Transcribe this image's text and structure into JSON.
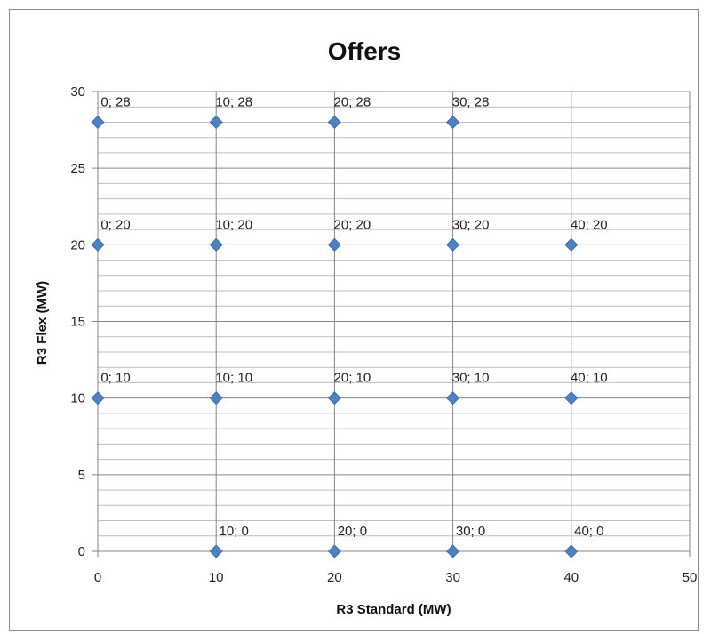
{
  "chart_data": {
    "type": "scatter",
    "title": "Offers",
    "xlabel": "R3 Standard (MW)",
    "ylabel": "R3 Flex (MW)",
    "xlim": [
      0,
      50
    ],
    "ylim": [
      0,
      30
    ],
    "x_ticks": [
      "0",
      "10",
      "20",
      "30",
      "40",
      "50"
    ],
    "y_ticks": [
      "0",
      "5",
      "10",
      "15",
      "20",
      "25",
      "30"
    ],
    "grid": true,
    "legend": "none",
    "marker_color": "#4f81bd",
    "points": [
      {
        "x": 0,
        "y": 28,
        "label": "0; 28"
      },
      {
        "x": 10,
        "y": 28,
        "label": "10; 28"
      },
      {
        "x": 20,
        "y": 28,
        "label": "20; 28"
      },
      {
        "x": 30,
        "y": 28,
        "label": "30; 28"
      },
      {
        "x": 0,
        "y": 20,
        "label": "0; 20"
      },
      {
        "x": 10,
        "y": 20,
        "label": "10; 20"
      },
      {
        "x": 20,
        "y": 20,
        "label": "20; 20"
      },
      {
        "x": 30,
        "y": 20,
        "label": "30; 20"
      },
      {
        "x": 40,
        "y": 20,
        "label": "40; 20"
      },
      {
        "x": 0,
        "y": 10,
        "label": "0; 10"
      },
      {
        "x": 10,
        "y": 10,
        "label": "10; 10"
      },
      {
        "x": 20,
        "y": 10,
        "label": "20; 10"
      },
      {
        "x": 30,
        "y": 10,
        "label": "30; 10"
      },
      {
        "x": 40,
        "y": 10,
        "label": "40; 10"
      },
      {
        "x": 10,
        "y": 0,
        "label": "10; 0"
      },
      {
        "x": 20,
        "y": 0,
        "label": "20; 0"
      },
      {
        "x": 30,
        "y": 0,
        "label": "30; 0"
      },
      {
        "x": 40,
        "y": 0,
        "label": "40; 0"
      }
    ]
  }
}
